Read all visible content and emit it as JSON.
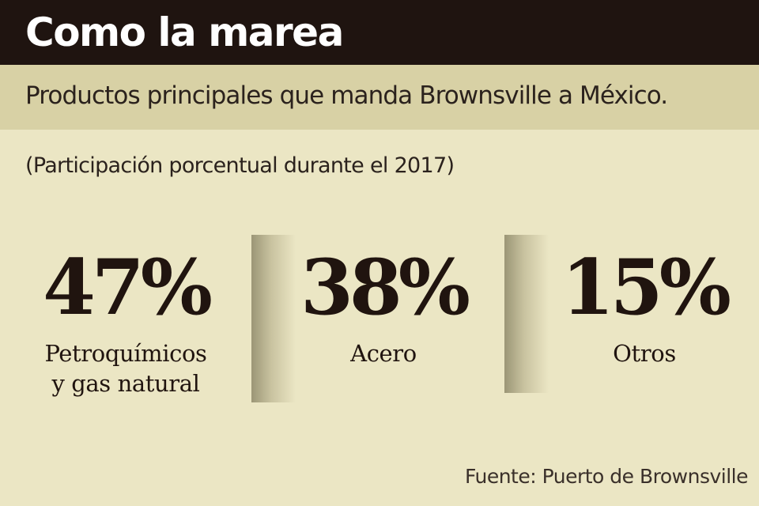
{
  "header": {
    "title": "Como la marea"
  },
  "subtitle": "Productos principales que manda Brownsville a México.",
  "note": "(Participación porcentual durante el 2017)",
  "stats": [
    {
      "value": "47%",
      "label_line1": "Petroquímicos",
      "label_line2": "y gas natural"
    },
    {
      "value": "38%",
      "label_line1": "Acero",
      "label_line2": ""
    },
    {
      "value": "15%",
      "label_line1": "Otros",
      "label_line2": ""
    }
  ],
  "source": "Fuente: Puerto de Brownsville",
  "colors": {
    "header_bg": "#1f1410",
    "subtitle_band": "#d8d1a5",
    "background": "#ebe6c4",
    "text_dark": "#20140f"
  }
}
